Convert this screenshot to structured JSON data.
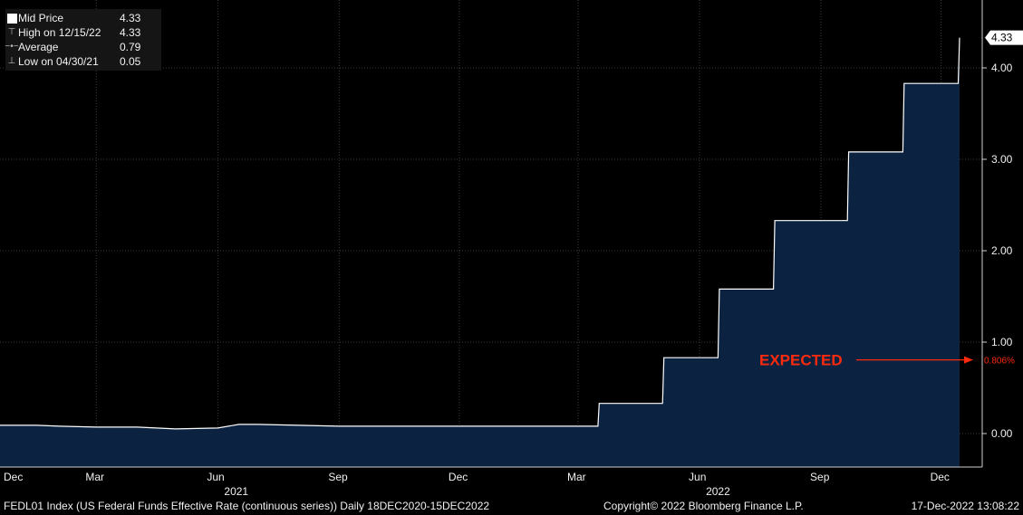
{
  "legend": {
    "items": [
      {
        "icon": "square-icon",
        "label": "Mid Price",
        "value": "4.33"
      },
      {
        "icon": "high-marker-icon",
        "label": "High on 12/15/22",
        "value": "4.33"
      },
      {
        "icon": "average-marker-icon",
        "label": "Average",
        "value": "0.79"
      },
      {
        "icon": "low-marker-icon",
        "label": "Low on 04/30/21",
        "value": "0.05"
      }
    ]
  },
  "footer": {
    "left": "FEDL01 Index (US Federal Funds Effective Rate (continuous series))  Daily 18DEC2020-15DEC2022",
    "copyright": "Copyright© 2022 Bloomberg Finance L.P.",
    "timestamp": "17-Dec-2022 13:08:22"
  },
  "annotation": {
    "text": "EXPECTED",
    "value_label": "0.806%",
    "value": 0.806,
    "color": "#ff2a0e"
  },
  "last_value_label": "4.33",
  "chart_data": {
    "type": "area",
    "title": "",
    "xlabel": "",
    "ylabel": "",
    "ylim": [
      -0.4,
      4.7
    ],
    "grid": true,
    "y_ticks": [
      "0.00",
      "1.00",
      "2.00",
      "3.00",
      "4.00"
    ],
    "x_tick_labels": [
      "Dec",
      "Mar",
      "Jun",
      "Sep",
      "Dec",
      "Mar",
      "Jun",
      "Sep",
      "Dec"
    ],
    "x_tick_dates": [
      "2020-12-18",
      "2021-03-01",
      "2021-06-01",
      "2021-09-01",
      "2021-12-01",
      "2022-03-01",
      "2022-06-01",
      "2022-09-01",
      "2022-12-01"
    ],
    "year_labels": [
      "2021",
      "2022"
    ],
    "year_label_dates": [
      "2021-06-15",
      "2022-06-15"
    ],
    "series": [
      {
        "name": "Mid Price",
        "x": [
          "2020-12-18",
          "2021-01-15",
          "2021-02-01",
          "2021-03-01",
          "2021-04-01",
          "2021-04-30",
          "2021-06-01",
          "2021-06-17",
          "2021-07-01",
          "2021-08-01",
          "2021-09-01",
          "2021-10-01",
          "2021-11-01",
          "2021-12-01",
          "2022-01-01",
          "2022-02-01",
          "2022-03-16",
          "2022-03-17",
          "2022-05-04",
          "2022-05-05",
          "2022-06-15",
          "2022-06-16",
          "2022-07-27",
          "2022-07-28",
          "2022-09-21",
          "2022-09-22",
          "2022-11-02",
          "2022-11-03",
          "2022-12-14",
          "2022-12-15"
        ],
        "values": [
          0.09,
          0.09,
          0.08,
          0.07,
          0.07,
          0.05,
          0.06,
          0.1,
          0.1,
          0.09,
          0.08,
          0.08,
          0.08,
          0.08,
          0.08,
          0.08,
          0.08,
          0.33,
          0.33,
          0.83,
          0.83,
          1.58,
          1.58,
          2.33,
          2.33,
          3.08,
          3.08,
          3.83,
          3.83,
          4.33
        ]
      }
    ],
    "colors": {
      "line": "#ffffff",
      "fill": "#0b2340",
      "grid": "#3a3a3a"
    }
  }
}
